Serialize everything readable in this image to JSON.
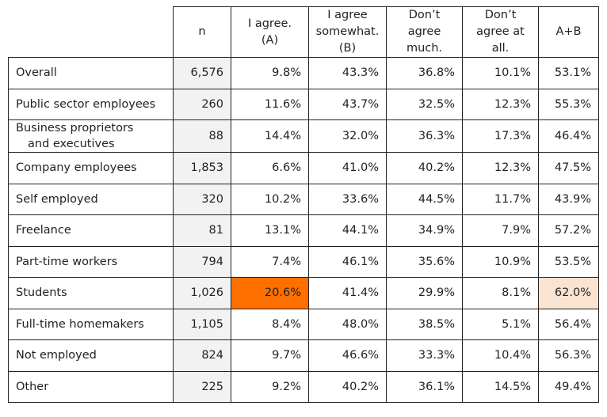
{
  "chart_data": {
    "type": "table",
    "columns": [
      {
        "key": "n",
        "label": "n"
      },
      {
        "key": "A",
        "label": "I agree.\n(A)"
      },
      {
        "key": "B",
        "label": "I agree\nsomewhat.\n(B)"
      },
      {
        "key": "C",
        "label": "Don’t\nagree\nmuch."
      },
      {
        "key": "D",
        "label": "Don’t\nagree at\nall."
      },
      {
        "key": "AB",
        "label": "A+B"
      }
    ],
    "rows": [
      {
        "label": "Overall",
        "n": "6,576",
        "A": "9.8%",
        "B": "43.3%",
        "C": "36.8%",
        "D": "10.1%",
        "AB": "53.1%"
      },
      {
        "label": "Public sector employees",
        "n": "260",
        "A": "11.6%",
        "B": "43.7%",
        "C": "32.5%",
        "D": "12.3%",
        "AB": "55.3%"
      },
      {
        "label": "Business proprietors\nand executives",
        "n": "88",
        "A": "14.4%",
        "B": "32.0%",
        "C": "36.3%",
        "D": "17.3%",
        "AB": "46.4%"
      },
      {
        "label": "Company employees",
        "n": "1,853",
        "A": "6.6%",
        "B": "41.0%",
        "C": "40.2%",
        "D": "12.3%",
        "AB": "47.5%"
      },
      {
        "label": "Self employed",
        "n": "320",
        "A": "10.2%",
        "B": "33.6%",
        "C": "44.5%",
        "D": "11.7%",
        "AB": "43.9%"
      },
      {
        "label": "Freelance",
        "n": "81",
        "A": "13.1%",
        "B": "44.1%",
        "C": "34.9%",
        "D": "7.9%",
        "AB": "57.2%"
      },
      {
        "label": "Part-time workers",
        "n": "794",
        "A": "7.4%",
        "B": "46.1%",
        "C": "35.6%",
        "D": "10.9%",
        "AB": "53.5%"
      },
      {
        "label": "Students",
        "n": "1,026",
        "A": "20.6%",
        "B": "41.4%",
        "C": "29.9%",
        "D": "8.1%",
        "AB": "62.0%"
      },
      {
        "label": "Full-time homemakers",
        "n": "1,105",
        "A": "8.4%",
        "B": "48.0%",
        "C": "38.5%",
        "D": "5.1%",
        "AB": "56.4%"
      },
      {
        "label": "Not employed",
        "n": "824",
        "A": "9.7%",
        "B": "46.6%",
        "C": "33.3%",
        "D": "10.4%",
        "AB": "56.3%"
      },
      {
        "label": "Other",
        "n": "225",
        "A": "9.2%",
        "B": "40.2%",
        "C": "36.1%",
        "D": "14.5%",
        "AB": "49.4%"
      }
    ],
    "highlights": [
      {
        "row": "Students",
        "column": "A",
        "color": "#ff7000"
      },
      {
        "row": "Students",
        "column": "AB",
        "color": "#fbe3d2"
      }
    ],
    "colors": {
      "n_column_background": "#f2f2f2",
      "border": "#222222"
    }
  }
}
